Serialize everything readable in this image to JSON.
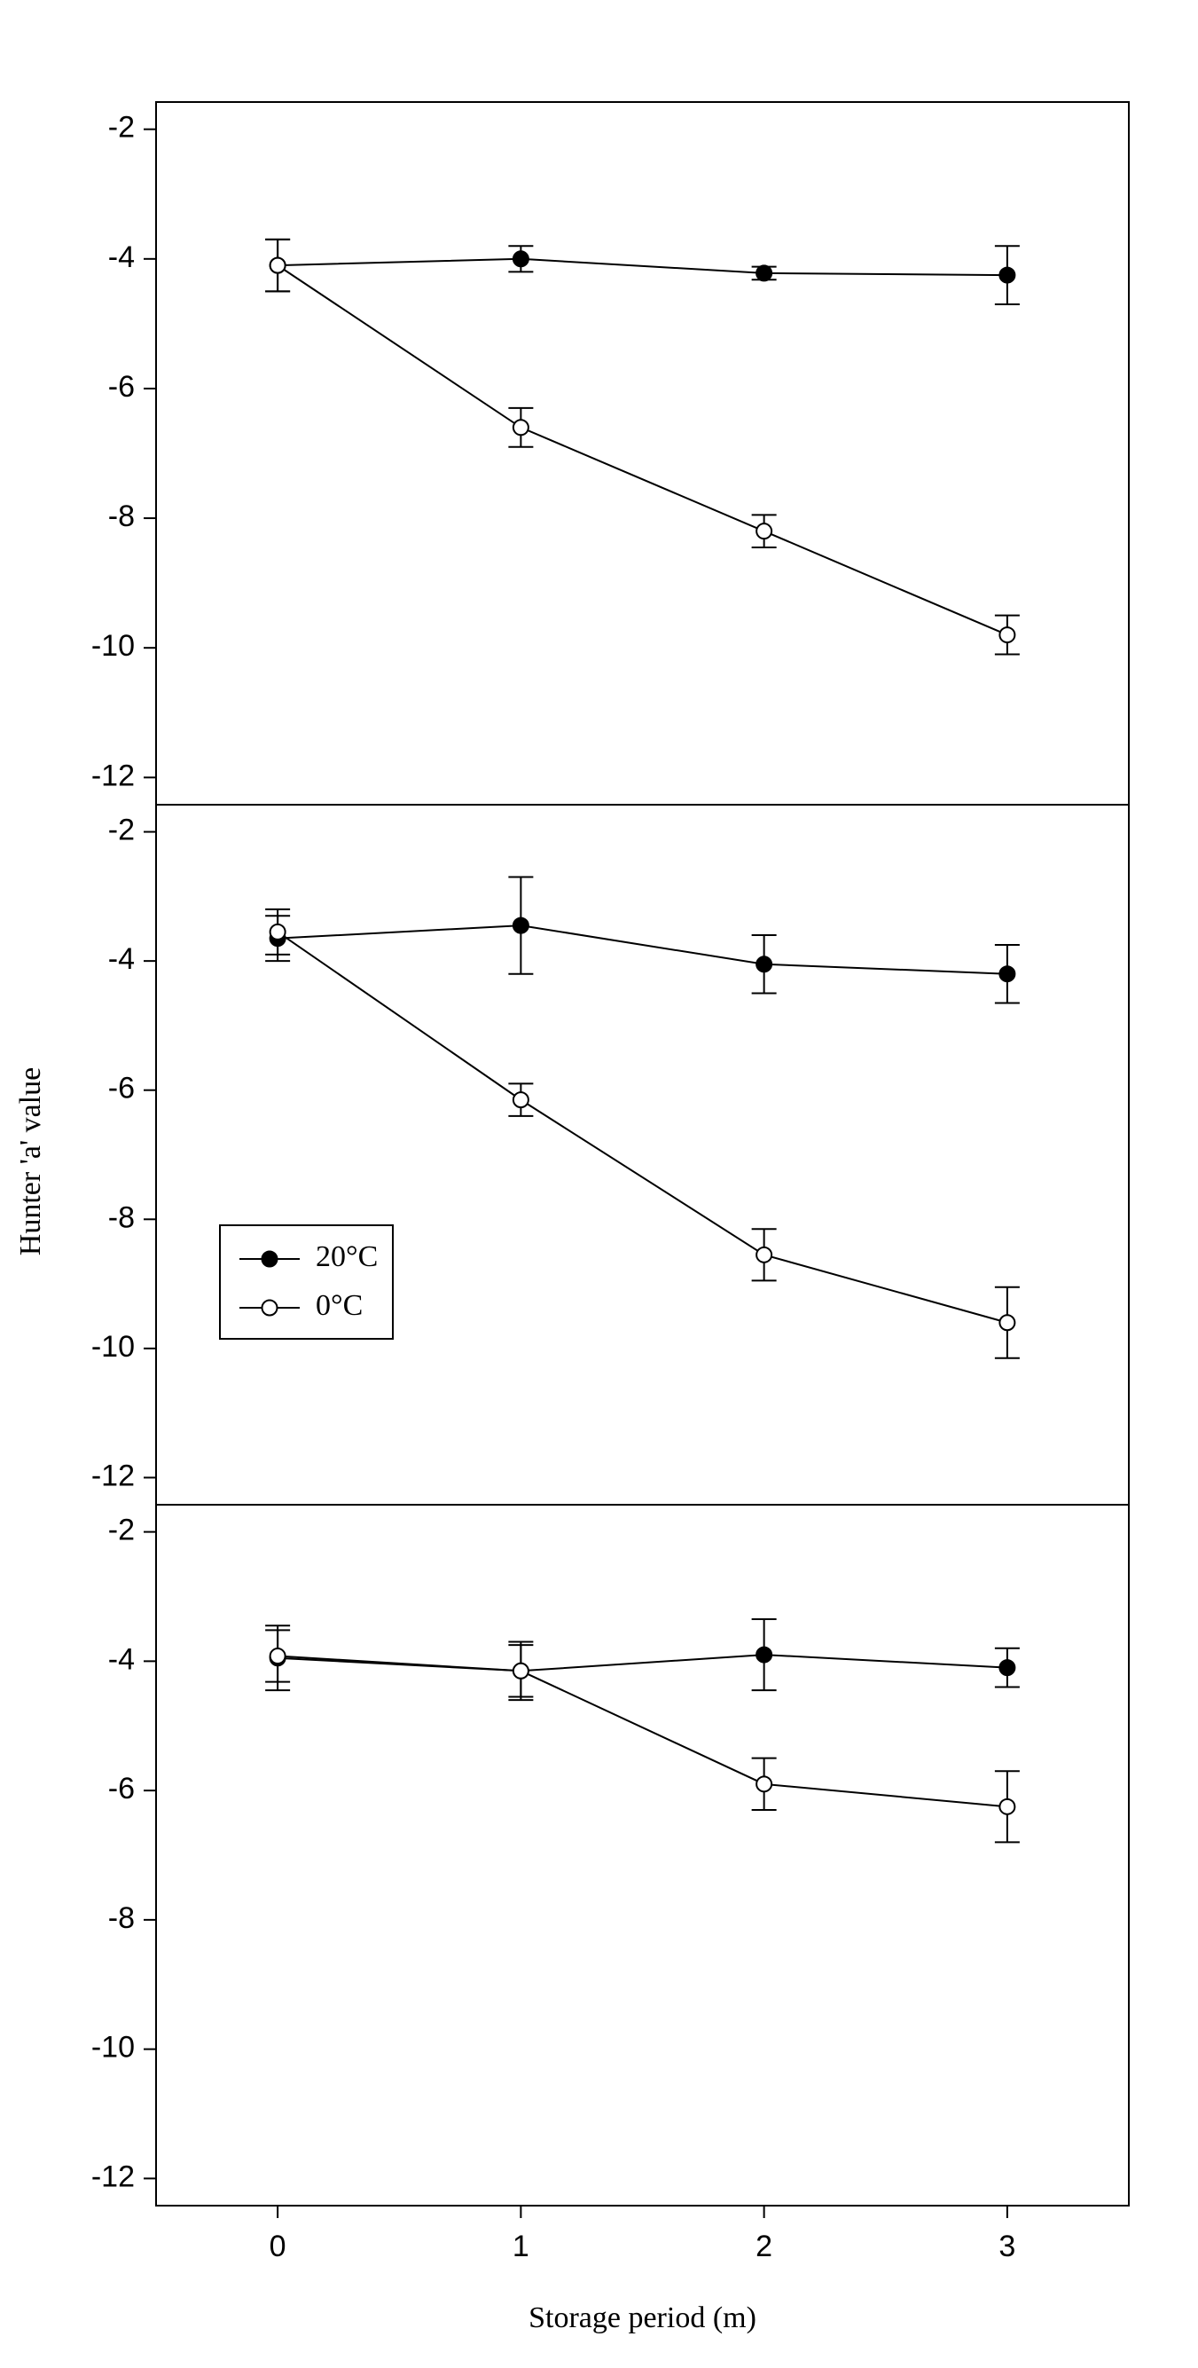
{
  "chart_data": [
    {
      "type": "line",
      "x": [
        0,
        1,
        2,
        3
      ],
      "xlim": [
        -0.5,
        3.5
      ],
      "ylim": [
        -12.42,
        -1.58
      ],
      "yticks": [
        -2,
        -4,
        -6,
        -8,
        -10,
        -12
      ],
      "series": [
        {
          "color": "#000000",
          "marker_fill": "#000000",
          "values": [
            -4.1,
            -4.0,
            -4.22,
            -4.25
          ],
          "errors": [
            0.4,
            0.2,
            0.1,
            0.45
          ]
        },
        {
          "color": "#000000",
          "marker_fill": "#ffffff",
          "values": [
            -4.1,
            -6.6,
            -8.2,
            -9.8
          ],
          "errors": [
            0.4,
            0.3,
            0.25,
            0.3
          ]
        }
      ]
    },
    {
      "type": "line",
      "x": [
        0,
        1,
        2,
        3
      ],
      "xlim": [
        -0.5,
        3.5
      ],
      "ylim": [
        -12.42,
        -1.58
      ],
      "yticks": [
        -2,
        -4,
        -6,
        -8,
        -10,
        -12
      ],
      "ylabel": "Hunter 'a' value",
      "legend": "left",
      "series": [
        {
          "name": "20°C",
          "color": "#000000",
          "marker_fill": "#000000",
          "values": [
            -3.65,
            -3.45,
            -4.05,
            -4.2
          ],
          "errors": [
            0.35,
            0.75,
            0.45,
            0.45
          ]
        },
        {
          "name": "0°C",
          "color": "#000000",
          "marker_fill": "#ffffff",
          "values": [
            -3.55,
            -6.15,
            -8.55,
            -9.6
          ],
          "errors": [
            0.35,
            0.25,
            0.4,
            0.55
          ]
        }
      ]
    },
    {
      "type": "line",
      "x": [
        0,
        1,
        2,
        3
      ],
      "xlim": [
        -0.5,
        3.5
      ],
      "ylim": [
        -12.42,
        -1.58
      ],
      "yticks": [
        -2,
        -4,
        -6,
        -8,
        -10,
        -12
      ],
      "xticks": [
        0,
        1,
        2,
        3
      ],
      "xlabel": "Storage period (m)",
      "series": [
        {
          "color": "#000000",
          "marker_fill": "#000000",
          "values": [
            -3.95,
            -4.15,
            -3.9,
            -4.1
          ],
          "errors": [
            0.5,
            0.45,
            0.55,
            0.3
          ]
        },
        {
          "color": "#000000",
          "marker_fill": "#ffffff",
          "values": [
            -3.92,
            -4.15,
            -5.9,
            -6.25
          ],
          "errors": [
            0.4,
            0.4,
            0.4,
            0.55
          ]
        }
      ]
    }
  ]
}
